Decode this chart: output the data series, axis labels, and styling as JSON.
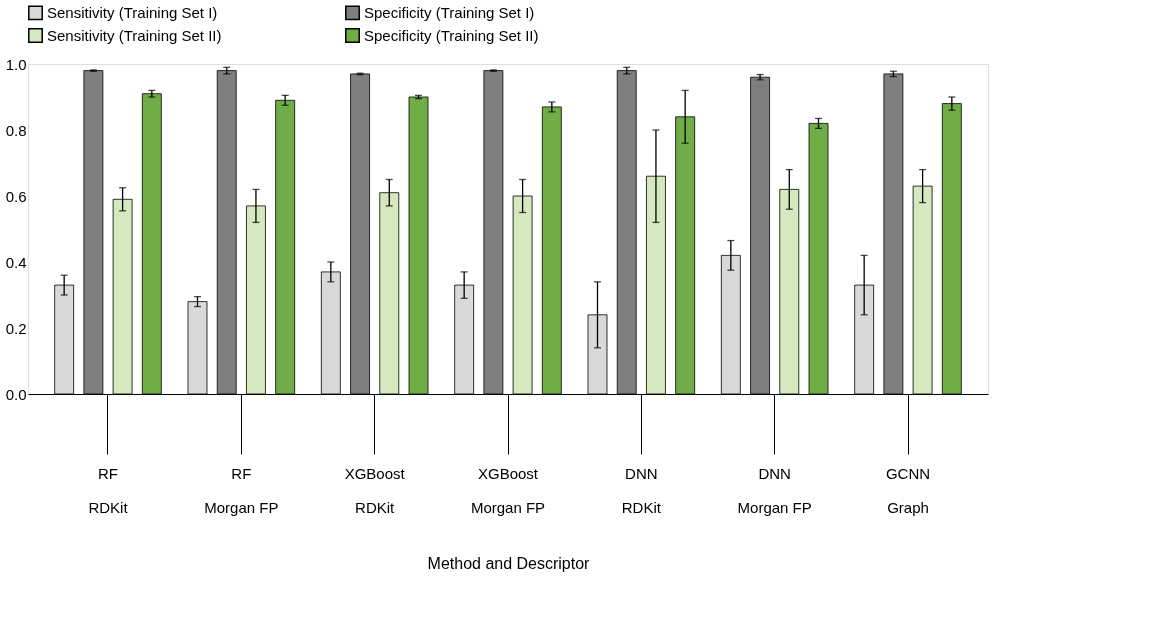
{
  "chart_data": {
    "type": "bar",
    "xlabel": "Method and Descriptor",
    "categories": [
      "RF\nRDKit",
      "RF\nMorgan FP",
      "XGBoost\nRDKit",
      "XGBoost\nMorgan FP",
      "DNN\nRDKit",
      "DNN\nMorgan FP",
      "GCNN\nGraph"
    ],
    "series": [
      {
        "name": "Sensitivity (Training Set I)",
        "color": "#d9d9d9",
        "values": [
          0.33,
          0.28,
          0.37,
          0.33,
          0.24,
          0.42,
          0.33
        ],
        "errors": [
          0.03,
          0.015,
          0.03,
          0.04,
          0.1,
          0.045,
          0.09
        ]
      },
      {
        "name": "Specificity (Training Set I)",
        "color": "#7f7f7f",
        "values": [
          0.98,
          0.98,
          0.97,
          0.98,
          0.98,
          0.96,
          0.97
        ],
        "errors": [
          0.002,
          0.01,
          0.002,
          0.002,
          0.01,
          0.008,
          0.008
        ]
      },
      {
        "name": "Sensitivity (Training Set II)",
        "color": "#d5e8bf",
        "values": [
          0.59,
          0.57,
          0.61,
          0.6,
          0.66,
          0.62,
          0.63
        ],
        "errors": [
          0.035,
          0.05,
          0.04,
          0.05,
          0.14,
          0.06,
          0.05
        ]
      },
      {
        "name": "Specificity (Training Set II)",
        "color": "#70ad47",
        "values": [
          0.91,
          0.89,
          0.9,
          0.87,
          0.84,
          0.82,
          0.88
        ],
        "errors": [
          0.01,
          0.015,
          0.005,
          0.015,
          0.08,
          0.015,
          0.02
        ]
      }
    ],
    "ylim": [
      0,
      1.0
    ],
    "yticks": [
      {
        "value": 0,
        "label": "0.0"
      },
      {
        "value": 0.2,
        "label": "0.2"
      },
      {
        "value": 0.4,
        "label": "0.4"
      },
      {
        "value": 0.6,
        "label": "0.6"
      },
      {
        "value": 0.8,
        "label": "0.8"
      },
      {
        "value": 1.0,
        "label": "1.0"
      }
    ],
    "grid": false,
    "legend": "top"
  }
}
